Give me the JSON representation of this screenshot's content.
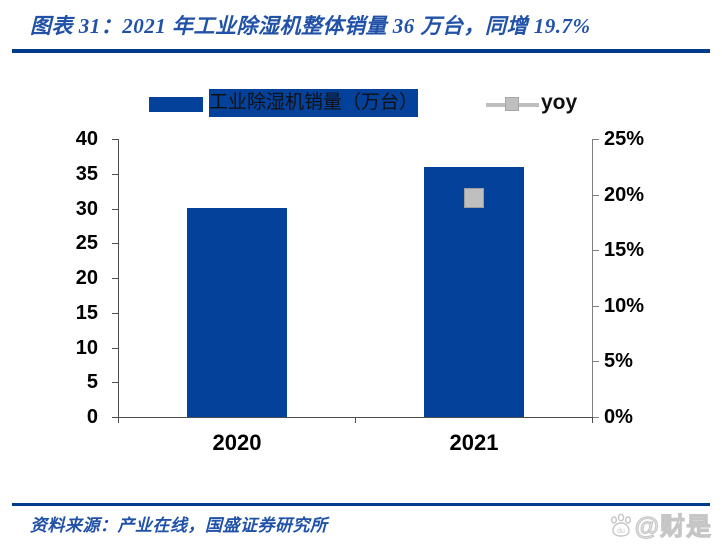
{
  "header": {
    "title": "图表 31：2021 年工业除湿机整体销量 36 万台，同增 19.7%"
  },
  "legend": {
    "bar_label": "工业除湿机销量（万台）",
    "yoy_label": "yoy"
  },
  "chart_data": {
    "type": "bar",
    "categories": [
      "2020",
      "2021"
    ],
    "series": [
      {
        "name": "工业除湿机销量（万台）",
        "type": "bar",
        "axis": "left",
        "color": "#04419B",
        "values": [
          30.1,
          36
        ]
      },
      {
        "name": "yoy",
        "type": "scatter",
        "axis": "right",
        "color": "#BFBFBF",
        "values": [
          null,
          19.7
        ]
      }
    ],
    "left_axis": {
      "min": 0,
      "max": 40,
      "ticks": [
        "40",
        "35",
        "30",
        "25",
        "20",
        "15",
        "10",
        "5",
        "0"
      ]
    },
    "right_axis": {
      "min": 0,
      "max": 25,
      "ticks": [
        "25%",
        "20%",
        "15%",
        "10%",
        "5%",
        "0%"
      ]
    },
    "grid": false,
    "legend_position": "top",
    "title": "2021 年工业除湿机整体销量 36 万台，同增 19.7%"
  },
  "footer": {
    "source": "资料来源：产业在线，国盛证券研究所",
    "watermark": "@财是"
  },
  "colors": {
    "accent_blue": "#04419B",
    "rule_navy": "#003A8A",
    "title_blue": "#2152A8",
    "marker_gray": "#BFBFBF"
  }
}
